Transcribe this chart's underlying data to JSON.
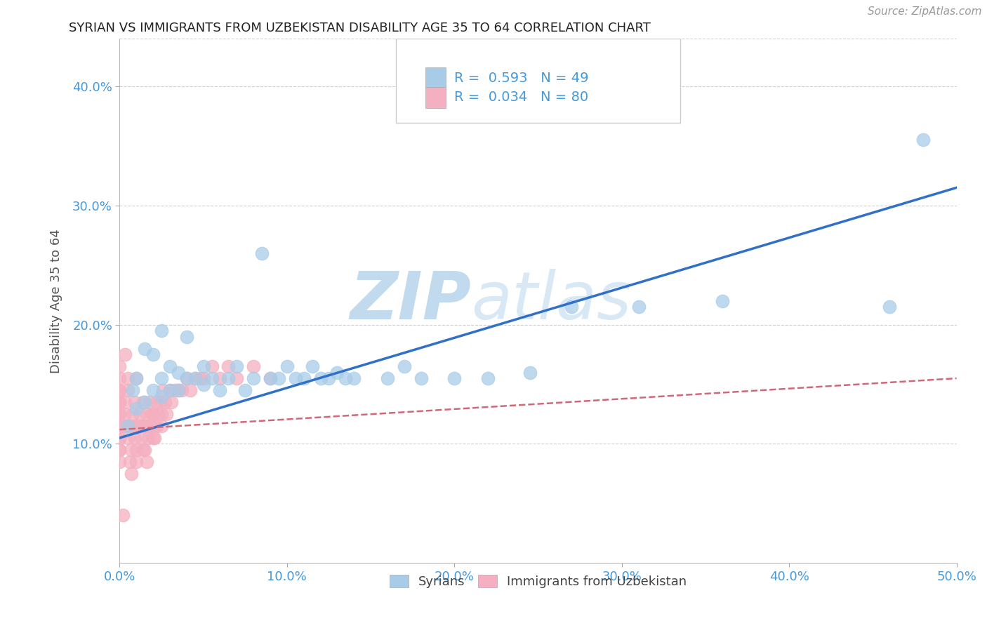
{
  "title": "SYRIAN VS IMMIGRANTS FROM UZBEKISTAN DISABILITY AGE 35 TO 64 CORRELATION CHART",
  "source": "Source: ZipAtlas.com",
  "ylabel": "Disability Age 35 to 64",
  "xlim": [
    0.0,
    0.5
  ],
  "ylim": [
    0.0,
    0.44
  ],
  "xticks": [
    0.0,
    0.1,
    0.2,
    0.3,
    0.4,
    0.5
  ],
  "yticks": [
    0.1,
    0.2,
    0.3,
    0.4
  ],
  "ytick_labels": [
    "10.0%",
    "20.0%",
    "30.0%",
    "40.0%"
  ],
  "xtick_labels": [
    "0.0%",
    "10.0%",
    "20.0%",
    "30.0%",
    "40.0%",
    "50.0%"
  ],
  "blue_R": 0.593,
  "blue_N": 49,
  "pink_R": 0.034,
  "pink_N": 80,
  "blue_color": "#a8cce8",
  "pink_color": "#f4afc0",
  "blue_line_color": "#3070c8",
  "pink_line_color": "#d06878",
  "legend_label_blue": "Syrians",
  "legend_label_pink": "Immigrants from Uzbekistan",
  "title_color": "#222222",
  "axis_label_color": "#555555",
  "tick_color": "#4499dd",
  "grid_color": "#d0d0d0",
  "watermark_color": "#c8dff0",
  "blue_scatter_x": [
    0.005,
    0.008,
    0.01,
    0.01,
    0.015,
    0.015,
    0.02,
    0.02,
    0.025,
    0.025,
    0.025,
    0.03,
    0.03,
    0.035,
    0.035,
    0.04,
    0.04,
    0.045,
    0.05,
    0.05,
    0.055,
    0.06,
    0.065,
    0.07,
    0.075,
    0.08,
    0.085,
    0.09,
    0.095,
    0.1,
    0.105,
    0.11,
    0.115,
    0.12,
    0.125,
    0.13,
    0.135,
    0.14,
    0.16,
    0.17,
    0.18,
    0.2,
    0.22,
    0.245,
    0.27,
    0.31,
    0.36,
    0.46,
    0.48
  ],
  "blue_scatter_y": [
    0.115,
    0.145,
    0.13,
    0.155,
    0.135,
    0.18,
    0.145,
    0.175,
    0.14,
    0.155,
    0.195,
    0.145,
    0.165,
    0.145,
    0.16,
    0.155,
    0.19,
    0.155,
    0.15,
    0.165,
    0.155,
    0.145,
    0.155,
    0.165,
    0.145,
    0.155,
    0.26,
    0.155,
    0.155,
    0.165,
    0.155,
    0.155,
    0.165,
    0.155,
    0.155,
    0.16,
    0.155,
    0.155,
    0.155,
    0.165,
    0.155,
    0.155,
    0.155,
    0.16,
    0.215,
    0.215,
    0.22,
    0.215,
    0.355
  ],
  "pink_scatter_x": [
    0.0,
    0.0,
    0.0,
    0.0,
    0.0,
    0.0,
    0.0,
    0.0,
    0.0,
    0.0,
    0.0,
    0.0,
    0.0,
    0.0,
    0.0,
    0.003,
    0.003,
    0.003,
    0.005,
    0.005,
    0.005,
    0.006,
    0.006,
    0.007,
    0.007,
    0.008,
    0.008,
    0.009,
    0.009,
    0.01,
    0.01,
    0.01,
    0.01,
    0.012,
    0.012,
    0.013,
    0.013,
    0.014,
    0.014,
    0.015,
    0.015,
    0.016,
    0.016,
    0.017,
    0.017,
    0.018,
    0.018,
    0.019,
    0.019,
    0.02,
    0.02,
    0.021,
    0.021,
    0.022,
    0.022,
    0.023,
    0.024,
    0.025,
    0.025,
    0.026,
    0.027,
    0.028,
    0.03,
    0.031,
    0.033,
    0.035,
    0.037,
    0.04,
    0.042,
    0.045,
    0.048,
    0.05,
    0.055,
    0.06,
    0.065,
    0.07,
    0.08,
    0.09,
    0.003,
    0.002
  ],
  "pink_scatter_y": [
    0.115,
    0.125,
    0.135,
    0.105,
    0.145,
    0.095,
    0.115,
    0.125,
    0.135,
    0.145,
    0.155,
    0.105,
    0.095,
    0.085,
    0.165,
    0.115,
    0.125,
    0.135,
    0.105,
    0.145,
    0.155,
    0.115,
    0.085,
    0.095,
    0.075,
    0.115,
    0.125,
    0.135,
    0.105,
    0.115,
    0.085,
    0.095,
    0.155,
    0.115,
    0.125,
    0.115,
    0.105,
    0.135,
    0.095,
    0.115,
    0.095,
    0.085,
    0.125,
    0.115,
    0.105,
    0.135,
    0.115,
    0.125,
    0.115,
    0.105,
    0.125,
    0.115,
    0.105,
    0.135,
    0.115,
    0.125,
    0.135,
    0.125,
    0.115,
    0.145,
    0.135,
    0.125,
    0.145,
    0.135,
    0.145,
    0.145,
    0.145,
    0.155,
    0.145,
    0.155,
    0.155,
    0.155,
    0.165,
    0.155,
    0.165,
    0.155,
    0.165,
    0.155,
    0.175,
    0.04
  ],
  "blue_trend_x": [
    0.0,
    0.5
  ],
  "blue_trend_y": [
    0.105,
    0.315
  ],
  "pink_trend_x": [
    0.0,
    0.5
  ],
  "pink_trend_y": [
    0.112,
    0.155
  ],
  "background_color": "#ffffff"
}
